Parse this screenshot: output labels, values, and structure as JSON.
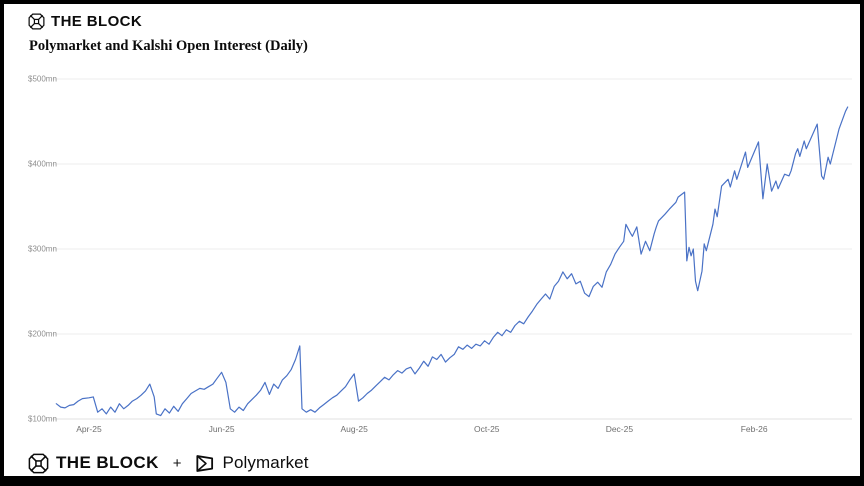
{
  "header": {
    "brand": "THE BLOCK"
  },
  "title": "Polymarket and Kalshi Open Interest (Daily)",
  "footer": {
    "brand": "THE BLOCK",
    "plus": "+",
    "partner": "Polymarket"
  },
  "colors": {
    "line": "#4a72c6",
    "grid": "#ececec",
    "grid_bottom": "#e2e2e2",
    "axis_text": "#8f8f8f",
    "ink": "#0c0c0c",
    "background": "#ffffff",
    "frame": "#000000"
  },
  "icons": {
    "header_logo": "the-block-cube-icon",
    "footer_logo": "the-block-cube-icon",
    "partner_logo": "polymarket-box-icon"
  },
  "chart_data": {
    "type": "line",
    "title": "Polymarket and Kalshi Open Interest (Daily)",
    "unit": "USD millions",
    "grid": "horizontal",
    "legend": "none",
    "y_domain": [
      100,
      500
    ],
    "x_domain": [
      "2025-03-15",
      "2026-03-18"
    ],
    "y_ticks": [
      {
        "value": 100,
        "label": "$100mn"
      },
      {
        "value": 200,
        "label": "$200mn"
      },
      {
        "value": 300,
        "label": "$300mn"
      },
      {
        "value": 400,
        "label": "$400mn"
      },
      {
        "value": 500,
        "label": "$500mn"
      }
    ],
    "x_ticks": [
      {
        "date": "2025-04-01",
        "label": "Apr-25"
      },
      {
        "date": "2025-06-01",
        "label": "Jun-25"
      },
      {
        "date": "2025-08-01",
        "label": "Aug-25"
      },
      {
        "date": "2025-10-01",
        "label": "Oct-25"
      },
      {
        "date": "2025-12-01",
        "label": "Dec-25"
      },
      {
        "date": "2026-02-01",
        "label": "Feb-26"
      }
    ],
    "series": [
      {
        "name": "Polymarket + Kalshi Open Interest",
        "points": [
          [
            "2025-03-17",
            118
          ],
          [
            "2025-03-19",
            114
          ],
          [
            "2025-03-21",
            113
          ],
          [
            "2025-03-23",
            116
          ],
          [
            "2025-03-25",
            117
          ],
          [
            "2025-03-27",
            121
          ],
          [
            "2025-03-29",
            124
          ],
          [
            "2025-04-01",
            125
          ],
          [
            "2025-04-03",
            126
          ],
          [
            "2025-04-05",
            108
          ],
          [
            "2025-04-07",
            112
          ],
          [
            "2025-04-09",
            106
          ],
          [
            "2025-04-11",
            114
          ],
          [
            "2025-04-13",
            108
          ],
          [
            "2025-04-15",
            118
          ],
          [
            "2025-04-17",
            112
          ],
          [
            "2025-04-19",
            116
          ],
          [
            "2025-04-21",
            121
          ],
          [
            "2025-04-23",
            124
          ],
          [
            "2025-04-25",
            128
          ],
          [
            "2025-04-27",
            133
          ],
          [
            "2025-04-29",
            141
          ],
          [
            "2025-05-01",
            126
          ],
          [
            "2025-05-02",
            106
          ],
          [
            "2025-05-04",
            104
          ],
          [
            "2025-05-06",
            112
          ],
          [
            "2025-05-08",
            107
          ],
          [
            "2025-05-10",
            115
          ],
          [
            "2025-05-12",
            109
          ],
          [
            "2025-05-14",
            118
          ],
          [
            "2025-05-16",
            124
          ],
          [
            "2025-05-18",
            130
          ],
          [
            "2025-05-20",
            133
          ],
          [
            "2025-05-22",
            136
          ],
          [
            "2025-05-24",
            135
          ],
          [
            "2025-05-26",
            138
          ],
          [
            "2025-05-28",
            141
          ],
          [
            "2025-05-30",
            148
          ],
          [
            "2025-06-01",
            155
          ],
          [
            "2025-06-03",
            143
          ],
          [
            "2025-06-05",
            112
          ],
          [
            "2025-06-07",
            108
          ],
          [
            "2025-06-09",
            114
          ],
          [
            "2025-06-11",
            110
          ],
          [
            "2025-06-13",
            118
          ],
          [
            "2025-06-15",
            123
          ],
          [
            "2025-06-17",
            128
          ],
          [
            "2025-06-19",
            134
          ],
          [
            "2025-06-21",
            143
          ],
          [
            "2025-06-23",
            129
          ],
          [
            "2025-06-25",
            141
          ],
          [
            "2025-06-27",
            136
          ],
          [
            "2025-06-29",
            146
          ],
          [
            "2025-07-01",
            151
          ],
          [
            "2025-07-03",
            158
          ],
          [
            "2025-07-05",
            170
          ],
          [
            "2025-07-07",
            186
          ],
          [
            "2025-07-08",
            112
          ],
          [
            "2025-07-10",
            108
          ],
          [
            "2025-07-12",
            111
          ],
          [
            "2025-07-14",
            108
          ],
          [
            "2025-07-16",
            113
          ],
          [
            "2025-07-18",
            117
          ],
          [
            "2025-07-20",
            121
          ],
          [
            "2025-07-22",
            125
          ],
          [
            "2025-07-24",
            128
          ],
          [
            "2025-07-26",
            133
          ],
          [
            "2025-07-28",
            138
          ],
          [
            "2025-07-30",
            146
          ],
          [
            "2025-08-01",
            153
          ],
          [
            "2025-08-03",
            121
          ],
          [
            "2025-08-05",
            125
          ],
          [
            "2025-08-07",
            130
          ],
          [
            "2025-08-09",
            134
          ],
          [
            "2025-08-11",
            139
          ],
          [
            "2025-08-13",
            144
          ],
          [
            "2025-08-15",
            149
          ],
          [
            "2025-08-17",
            146
          ],
          [
            "2025-08-19",
            152
          ],
          [
            "2025-08-21",
            157
          ],
          [
            "2025-08-23",
            154
          ],
          [
            "2025-08-25",
            159
          ],
          [
            "2025-08-27",
            161
          ],
          [
            "2025-08-29",
            153
          ],
          [
            "2025-08-31",
            160
          ],
          [
            "2025-09-02",
            168
          ],
          [
            "2025-09-04",
            162
          ],
          [
            "2025-09-06",
            173
          ],
          [
            "2025-09-08",
            170
          ],
          [
            "2025-09-10",
            176
          ],
          [
            "2025-09-12",
            167
          ],
          [
            "2025-09-14",
            172
          ],
          [
            "2025-09-16",
            176
          ],
          [
            "2025-09-18",
            185
          ],
          [
            "2025-09-20",
            182
          ],
          [
            "2025-09-22",
            187
          ],
          [
            "2025-09-24",
            183
          ],
          [
            "2025-09-26",
            188
          ],
          [
            "2025-09-28",
            186
          ],
          [
            "2025-09-30",
            192
          ],
          [
            "2025-10-02",
            188
          ],
          [
            "2025-10-04",
            196
          ],
          [
            "2025-10-06",
            202
          ],
          [
            "2025-10-08",
            198
          ],
          [
            "2025-10-10",
            205
          ],
          [
            "2025-10-12",
            202
          ],
          [
            "2025-10-14",
            210
          ],
          [
            "2025-10-16",
            215
          ],
          [
            "2025-10-18",
            212
          ],
          [
            "2025-10-20",
            220
          ],
          [
            "2025-10-22",
            227
          ],
          [
            "2025-10-24",
            235
          ],
          [
            "2025-10-26",
            241
          ],
          [
            "2025-10-28",
            247
          ],
          [
            "2025-10-30",
            241
          ],
          [
            "2025-11-01",
            256
          ],
          [
            "2025-11-03",
            262
          ],
          [
            "2025-11-05",
            273
          ],
          [
            "2025-11-07",
            265
          ],
          [
            "2025-11-09",
            271
          ],
          [
            "2025-11-11",
            259
          ],
          [
            "2025-11-13",
            262
          ],
          [
            "2025-11-15",
            248
          ],
          [
            "2025-11-17",
            244
          ],
          [
            "2025-11-19",
            256
          ],
          [
            "2025-11-21",
            261
          ],
          [
            "2025-11-23",
            255
          ],
          [
            "2025-11-25",
            273
          ],
          [
            "2025-11-27",
            282
          ],
          [
            "2025-11-29",
            294
          ],
          [
            "2025-12-01",
            302
          ],
          [
            "2025-12-03",
            309
          ],
          [
            "2025-12-04",
            329
          ],
          [
            "2025-12-06",
            319
          ],
          [
            "2025-12-07",
            315
          ],
          [
            "2025-12-09",
            326
          ],
          [
            "2025-12-11",
            294
          ],
          [
            "2025-12-13",
            309
          ],
          [
            "2025-12-15",
            298
          ],
          [
            "2025-12-17",
            318
          ],
          [
            "2025-12-18",
            326
          ],
          [
            "2025-12-19",
            333
          ],
          [
            "2025-12-22",
            341
          ],
          [
            "2025-12-24",
            347
          ],
          [
            "2025-12-27",
            355
          ],
          [
            "2025-12-28",
            361
          ],
          [
            "2025-12-31",
            367
          ],
          [
            "2026-01-01",
            286
          ],
          [
            "2026-01-02",
            302
          ],
          [
            "2026-01-03",
            292
          ],
          [
            "2026-01-04",
            300
          ],
          [
            "2026-01-05",
            262
          ],
          [
            "2026-01-06",
            251
          ],
          [
            "2026-01-08",
            274
          ],
          [
            "2026-01-09",
            306
          ],
          [
            "2026-01-10",
            298
          ],
          [
            "2026-01-13",
            329
          ],
          [
            "2026-01-14",
            347
          ],
          [
            "2026-01-15",
            338
          ],
          [
            "2026-01-17",
            374
          ],
          [
            "2026-01-20",
            382
          ],
          [
            "2026-01-21",
            373
          ],
          [
            "2026-01-23",
            392
          ],
          [
            "2026-01-24",
            382
          ],
          [
            "2026-01-28",
            414
          ],
          [
            "2026-01-29",
            396
          ],
          [
            "2026-02-03",
            426
          ],
          [
            "2026-02-05",
            359
          ],
          [
            "2026-02-07",
            400
          ],
          [
            "2026-02-09",
            368
          ],
          [
            "2026-02-11",
            380
          ],
          [
            "2026-02-12",
            371
          ],
          [
            "2026-02-15",
            388
          ],
          [
            "2026-02-17",
            386
          ],
          [
            "2026-02-18",
            392
          ],
          [
            "2026-02-20",
            412
          ],
          [
            "2026-02-21",
            418
          ],
          [
            "2026-02-22",
            409
          ],
          [
            "2026-02-24",
            427
          ],
          [
            "2026-02-25",
            418
          ],
          [
            "2026-03-02",
            447
          ],
          [
            "2026-03-04",
            386
          ],
          [
            "2026-03-05",
            382
          ],
          [
            "2026-03-07",
            408
          ],
          [
            "2026-03-08",
            400
          ],
          [
            "2026-03-12",
            441
          ],
          [
            "2026-03-15",
            462
          ],
          [
            "2026-03-16",
            467
          ]
        ]
      }
    ]
  }
}
